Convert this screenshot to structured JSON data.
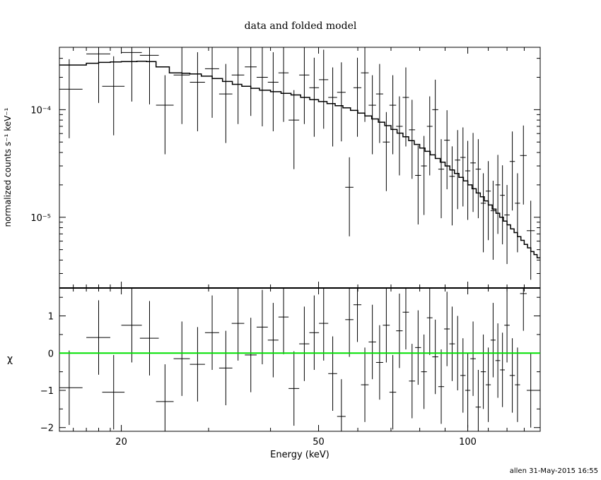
{
  "title": "data and folded model",
  "footer": "allen 31-May-2015 16:55",
  "colors": {
    "model_residual_line": "#00e000",
    "ink": "#000000"
  },
  "chart_data": [
    {
      "panel": "top",
      "type": "scatter",
      "ylabel": "normalized counts s⁻¹ keV⁻¹",
      "xscale": "log",
      "yscale": "log",
      "xlim": [
        15,
        140
      ],
      "ylim": [
        2.2e-06,
        0.00038
      ],
      "y_tick_labels": [
        {
          "value": 0.0001,
          "label": "10⁻⁴"
        },
        {
          "value": 1e-05,
          "label": "10⁻⁵"
        }
      ],
      "series": [
        {
          "kind": "data-with-errors",
          "x": [
            15.7,
            18.0,
            19.3,
            21.0,
            22.8,
            24.5,
            26.5,
            28.5,
            30.5,
            32.5,
            34.4,
            36.5,
            38.5,
            40.5,
            42.5,
            44.6,
            46.8,
            49.0,
            51.2,
            53.4,
            55.6,
            57.7,
            59.9,
            62.0,
            64.2,
            66.4,
            68.5,
            70.6,
            72.8,
            75.0,
            77.2,
            79.4,
            81.6,
            83.8,
            86.0,
            88.4,
            90.8,
            93.0,
            95.4,
            97.8,
            100.0,
            102.5,
            105.0,
            107.5,
            110.0,
            112.5,
            115.0,
            117.5,
            120.0,
            123.0,
            126.0,
            129.5,
            134.0
          ],
          "xerr": [
            1.0,
            1.0,
            1.0,
            1.0,
            1.0,
            1.0,
            1.0,
            1.0,
            1.0,
            1.0,
            1.0,
            1.0,
            1.0,
            1.0,
            1.0,
            1.1,
            1.1,
            1.1,
            1.1,
            1.1,
            1.1,
            1.1,
            1.1,
            1.1,
            1.1,
            1.1,
            1.1,
            1.1,
            1.1,
            1.1,
            1.1,
            1.1,
            1.1,
            1.1,
            1.2,
            1.2,
            1.2,
            1.2,
            1.2,
            1.2,
            1.2,
            1.3,
            1.3,
            1.3,
            1.3,
            1.3,
            1.3,
            1.3,
            1.5,
            1.5,
            1.5,
            2.0,
            2.5
          ],
          "y": [
            0.000155,
            0.00033,
            0.000165,
            0.00034,
            0.00032,
            0.00011,
            0.00021,
            0.00018,
            0.00024,
            0.00014,
            0.00021,
            0.00025,
            0.0002,
            0.00018,
            0.00022,
            8e-05,
            0.00021,
            0.00016,
            0.00019,
            0.00013,
            0.000145,
            1.9e-05,
            0.00016,
            0.00022,
            0.00011,
            0.00014,
            5e-05,
            0.00011,
            7e-05,
            0.00013,
            6.5e-05,
            2.45e-05,
            3e-05,
            7e-05,
            0.0001,
            2.8e-05,
            5.2e-05,
            2.4e-05,
            3.4e-05,
            3.6e-05,
            2.7e-05,
            3.2e-05,
            2.8e-05,
            1.35e-05,
            1.75e-05,
            1.15e-05,
            2e-05,
            1.6e-05,
            1.05e-05,
            3.3e-05,
            1.35e-05,
            3.75e-05,
            7.5e-06
          ]
        },
        {
          "kind": "model-step",
          "x_edges": [
            15,
            16.7,
            17.0,
            18.0,
            19.0,
            20.0,
            21.5,
            22.5,
            23.5,
            25.0,
            26.5,
            27.5,
            29.0,
            30.5,
            32.0,
            33.5,
            35.0,
            36.5,
            38.0,
            40.0,
            42.0,
            44.0,
            46.0,
            48.0,
            50.0,
            52.0,
            54.0,
            56.0,
            58.0,
            60.0,
            62.0,
            64.0,
            66.0,
            68.0,
            70.0,
            72.0,
            74.0,
            76.0,
            78.0,
            80.0,
            82.0,
            84.0,
            86.0,
            88.0,
            90.0,
            92.0,
            94.0,
            96.0,
            98.0,
            100.0,
            102.0,
            104.0,
            106.0,
            108.0,
            110.0,
            112.0,
            114.0,
            116.0,
            118.0,
            120.0,
            122.0,
            124.0,
            126.0,
            128.0,
            130.0,
            132.0,
            134.0,
            136.0,
            138.0,
            140.0
          ],
          "y": [
            0.00026,
            0.00026,
            0.00027,
            0.000275,
            0.000278,
            0.00028,
            0.000282,
            0.00028,
            0.00025,
            0.00022,
            0.000218,
            0.000215,
            0.000205,
            0.000195,
            0.000183,
            0.000172,
            0.000165,
            0.000158,
            0.000152,
            0.000147,
            0.000142,
            0.000137,
            0.00013,
            0.000124,
            0.000119,
            0.000114,
            0.000109,
            0.000104,
            9.85e-05,
            9.3e-05,
            8.75e-05,
            8.2e-05,
            7.65e-05,
            7.1e-05,
            6.55e-05,
            6.05e-05,
            5.6e-05,
            5.15e-05,
            4.75e-05,
            4.4e-05,
            4.1e-05,
            3.8e-05,
            3.52e-05,
            3.25e-05,
            3e-05,
            2.75e-05,
            2.55e-05,
            2.35e-05,
            2.18e-05,
            2e-05,
            1.84e-05,
            1.68e-05,
            1.55e-05,
            1.42e-05,
            1.3e-05,
            1.19e-05,
            1.09e-05,
            1e-05,
            9.2e-06,
            8.5e-06,
            7.8e-06,
            7.2e-06,
            6.6e-06,
            6.1e-06,
            5.6e-06,
            5.2e-06,
            4.8e-06,
            4.5e-06,
            4.2e-06
          ]
        }
      ]
    },
    {
      "panel": "bottom",
      "type": "scatter",
      "xlabel": "Energy (keV)",
      "ylabel": "χ",
      "xscale": "log",
      "xlim": [
        15,
        140
      ],
      "ylim": [
        -2.1,
        1.75
      ],
      "x_tick_labels": [
        {
          "value": 20,
          "label": "20"
        },
        {
          "value": 50,
          "label": "50"
        },
        {
          "value": 100,
          "label": "100"
        }
      ],
      "y_tick_labels": [
        {
          "value": 1,
          "label": "1"
        },
        {
          "value": 0,
          "label": "0"
        },
        {
          "value": -1,
          "label": "−1"
        },
        {
          "value": -2,
          "label": "−2"
        }
      ],
      "zero_line": 0,
      "series": [
        {
          "kind": "residuals",
          "x": [
            15.7,
            18.0,
            19.3,
            21.0,
            22.8,
            24.5,
            26.5,
            28.5,
            30.5,
            32.5,
            34.4,
            36.5,
            38.5,
            40.5,
            42.5,
            44.6,
            46.8,
            49.0,
            51.2,
            53.4,
            55.6,
            57.7,
            59.9,
            62.0,
            64.2,
            66.4,
            68.5,
            70.6,
            72.8,
            75.0,
            77.2,
            79.4,
            81.6,
            83.8,
            86.0,
            88.4,
            90.8,
            93.0,
            95.4,
            97.8,
            100.0,
            102.5,
            105.0,
            107.5,
            110.0,
            112.5,
            115.0,
            117.5,
            120.0,
            123.0,
            126.0,
            129.5,
            134.0
          ],
          "y": [
            -0.93,
            0.42,
            -1.05,
            0.75,
            0.4,
            -1.3,
            -0.15,
            -0.3,
            0.55,
            -0.4,
            0.8,
            -0.05,
            0.7,
            0.35,
            0.97,
            -0.95,
            0.25,
            0.55,
            0.8,
            -0.55,
            -1.7,
            0.9,
            1.3,
            -0.85,
            0.3,
            -0.25,
            0.75,
            -1.05,
            0.6,
            1.1,
            -0.75,
            0.15,
            -0.5,
            0.95,
            -0.1,
            -0.9,
            0.65,
            0.25,
            0.0,
            -0.6,
            -1.0,
            -0.15,
            -1.45,
            -0.5,
            -0.85,
            0.35,
            -0.2,
            -0.45,
            0.75,
            -0.6,
            -0.85,
            1.6,
            -1.0
          ]
        }
      ]
    }
  ]
}
